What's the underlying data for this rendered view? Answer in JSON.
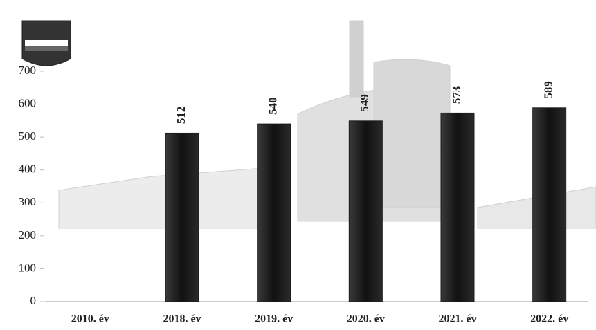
{
  "chart_data": {
    "type": "bar",
    "categories": [
      "2010. év",
      "2018. év",
      "2019. év",
      "2020. év",
      "2021. év",
      "2022. év"
    ],
    "values": [
      null,
      512,
      540,
      549,
      573,
      589
    ],
    "color": "#1c1c1c",
    "ylim": [
      0,
      700
    ],
    "yticks": [
      0,
      100,
      200,
      300,
      400,
      500,
      600,
      700
    ],
    "grid": false
  }
}
